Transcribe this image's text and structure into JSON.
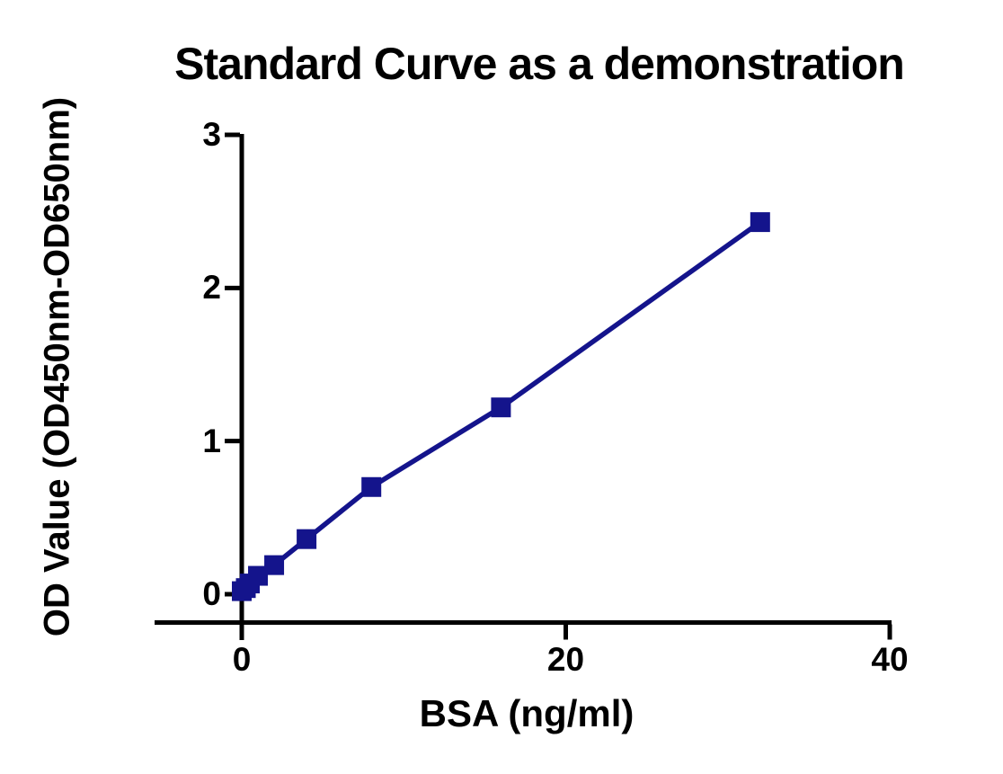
{
  "chart_data": {
    "type": "scatter",
    "title": "Standard Curve as a demonstration",
    "xlabel": "BSA (ng/ml)",
    "ylabel": "OD Value (OD450nm-OD650nm)",
    "x": [
      0,
      0.25,
      0.5,
      1,
      2,
      4,
      8,
      16,
      32
    ],
    "y": [
      0.02,
      0.04,
      0.07,
      0.12,
      0.19,
      0.36,
      0.7,
      1.22,
      2.43
    ],
    "x_ticks": [
      0,
      20,
      40
    ],
    "y_ticks": [
      0,
      1,
      2,
      3
    ],
    "xlim": [
      0,
      40
    ],
    "ylim": [
      0,
      3
    ],
    "marker": "square",
    "line_on": true,
    "grid": false,
    "legend": false,
    "line_color": "#14148c",
    "marker_color": "#14148c",
    "axis_color": "#000000",
    "text_color": "#000000",
    "background_color": "#ffffff"
  }
}
